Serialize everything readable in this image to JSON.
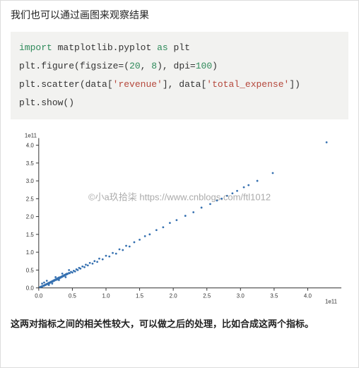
{
  "heading": "我们也可以通过画图来观察结果",
  "code": {
    "line1": {
      "import": "import",
      "module": "matplotlib.pyplot",
      "as": "as",
      "alias": "plt"
    },
    "line2": {
      "obj": "plt",
      "dot": ".",
      "fn": "figure(figsize=",
      "paren_open": "(",
      "n1": "20",
      "comma": ", ",
      "n2": "8",
      "paren_close": ")",
      "comma2": ", ",
      "kw": "dpi=",
      "n3": "100",
      "close": ")"
    },
    "line3": {
      "obj": "plt",
      "dot": ".",
      "fn": "scatter(data[",
      "s1": "'revenue'",
      "mid": "], data[",
      "s2": "'total_expense'",
      "close": "])"
    },
    "line4": {
      "obj": "plt",
      "dot": ".",
      "fn": "show()"
    }
  },
  "watermark": "©小a玖拾柒   https://www.cnblogs.com/ftl1012",
  "footer": "这两对指标之间的相关性较大，可以做之后的处理，比如合成这两个指标。",
  "chart": {
    "type": "scatter",
    "background_color": "#ffffff",
    "axis_color": "#333333",
    "point_color": "#3570b0",
    "point_radius": 1.4,
    "xlim": [
      0,
      4.5
    ],
    "ylim": [
      0,
      4.2
    ],
    "xticks": [
      0,
      0.5,
      1.0,
      1.5,
      2.0,
      2.5,
      3.0,
      3.5,
      4.0
    ],
    "yticks": [
      0,
      0.5,
      1.0,
      1.5,
      2.0,
      2.5,
      3.0,
      3.5,
      4.0
    ],
    "xlabel_scale": "1e11",
    "ylabel_scale": "1e11",
    "tick_fontsize": 8,
    "points": [
      [
        0.02,
        0.02
      ],
      [
        0.03,
        0.03
      ],
      [
        0.04,
        0.03
      ],
      [
        0.05,
        0.04
      ],
      [
        0.05,
        0.05
      ],
      [
        0.06,
        0.05
      ],
      [
        0.07,
        0.06
      ],
      [
        0.08,
        0.06
      ],
      [
        0.08,
        0.07
      ],
      [
        0.09,
        0.08
      ],
      [
        0.1,
        0.08
      ],
      [
        0.1,
        0.09
      ],
      [
        0.11,
        0.1
      ],
      [
        0.12,
        0.1
      ],
      [
        0.12,
        0.11
      ],
      [
        0.13,
        0.12
      ],
      [
        0.14,
        0.11
      ],
      [
        0.14,
        0.13
      ],
      [
        0.15,
        0.14
      ],
      [
        0.16,
        0.13
      ],
      [
        0.16,
        0.15
      ],
      [
        0.17,
        0.15
      ],
      [
        0.18,
        0.16
      ],
      [
        0.18,
        0.17
      ],
      [
        0.19,
        0.17
      ],
      [
        0.2,
        0.18
      ],
      [
        0.2,
        0.19
      ],
      [
        0.21,
        0.18
      ],
      [
        0.22,
        0.2
      ],
      [
        0.22,
        0.21
      ],
      [
        0.23,
        0.2
      ],
      [
        0.24,
        0.22
      ],
      [
        0.24,
        0.23
      ],
      [
        0.25,
        0.22
      ],
      [
        0.26,
        0.24
      ],
      [
        0.26,
        0.25
      ],
      [
        0.27,
        0.23
      ],
      [
        0.28,
        0.26
      ],
      [
        0.28,
        0.27
      ],
      [
        0.29,
        0.25
      ],
      [
        0.3,
        0.28
      ],
      [
        0.3,
        0.29
      ],
      [
        0.31,
        0.27
      ],
      [
        0.32,
        0.3
      ],
      [
        0.33,
        0.29
      ],
      [
        0.34,
        0.32
      ],
      [
        0.35,
        0.31
      ],
      [
        0.36,
        0.34
      ],
      [
        0.37,
        0.33
      ],
      [
        0.38,
        0.36
      ],
      [
        0.39,
        0.35
      ],
      [
        0.4,
        0.38
      ],
      [
        0.41,
        0.37
      ],
      [
        0.42,
        0.4
      ],
      [
        0.43,
        0.39
      ],
      [
        0.45,
        0.42
      ],
      [
        0.46,
        0.41
      ],
      [
        0.48,
        0.45
      ],
      [
        0.5,
        0.43
      ],
      [
        0.52,
        0.48
      ],
      [
        0.54,
        0.46
      ],
      [
        0.56,
        0.52
      ],
      [
        0.58,
        0.5
      ],
      [
        0.6,
        0.56
      ],
      [
        0.62,
        0.54
      ],
      [
        0.65,
        0.6
      ],
      [
        0.68,
        0.58
      ],
      [
        0.7,
        0.65
      ],
      [
        0.73,
        0.63
      ],
      [
        0.76,
        0.7
      ],
      [
        0.8,
        0.68
      ],
      [
        0.83,
        0.75
      ],
      [
        0.87,
        0.73
      ],
      [
        0.9,
        0.82
      ],
      [
        0.95,
        0.8
      ],
      [
        1.0,
        0.9
      ],
      [
        1.05,
        0.88
      ],
      [
        1.1,
        0.98
      ],
      [
        1.15,
        0.96
      ],
      [
        1.2,
        1.08
      ],
      [
        1.25,
        1.06
      ],
      [
        1.3,
        1.18
      ],
      [
        1.35,
        1.16
      ],
      [
        1.42,
        1.28
      ],
      [
        1.5,
        1.35
      ],
      [
        1.58,
        1.45
      ],
      [
        1.65,
        1.5
      ],
      [
        1.75,
        1.62
      ],
      [
        1.85,
        1.7
      ],
      [
        1.95,
        1.82
      ],
      [
        2.05,
        1.9
      ],
      [
        2.18,
        2.02
      ],
      [
        2.3,
        2.12
      ],
      [
        2.42,
        2.25
      ],
      [
        2.55,
        2.35
      ],
      [
        2.65,
        2.45
      ],
      [
        2.72,
        2.5
      ],
      [
        2.8,
        2.58
      ],
      [
        2.88,
        2.65
      ],
      [
        2.95,
        2.72
      ],
      [
        3.05,
        2.82
      ],
      [
        3.12,
        2.88
      ],
      [
        3.25,
        3.0
      ],
      [
        3.48,
        3.22
      ],
      [
        4.28,
        4.08
      ],
      [
        0.15,
        0.08
      ],
      [
        0.2,
        0.12
      ],
      [
        0.25,
        0.3
      ],
      [
        0.3,
        0.22
      ],
      [
        0.35,
        0.4
      ],
      [
        0.4,
        0.3
      ],
      [
        0.45,
        0.5
      ],
      [
        0.05,
        0.12
      ],
      [
        0.08,
        0.15
      ],
      [
        0.12,
        0.2
      ]
    ]
  }
}
